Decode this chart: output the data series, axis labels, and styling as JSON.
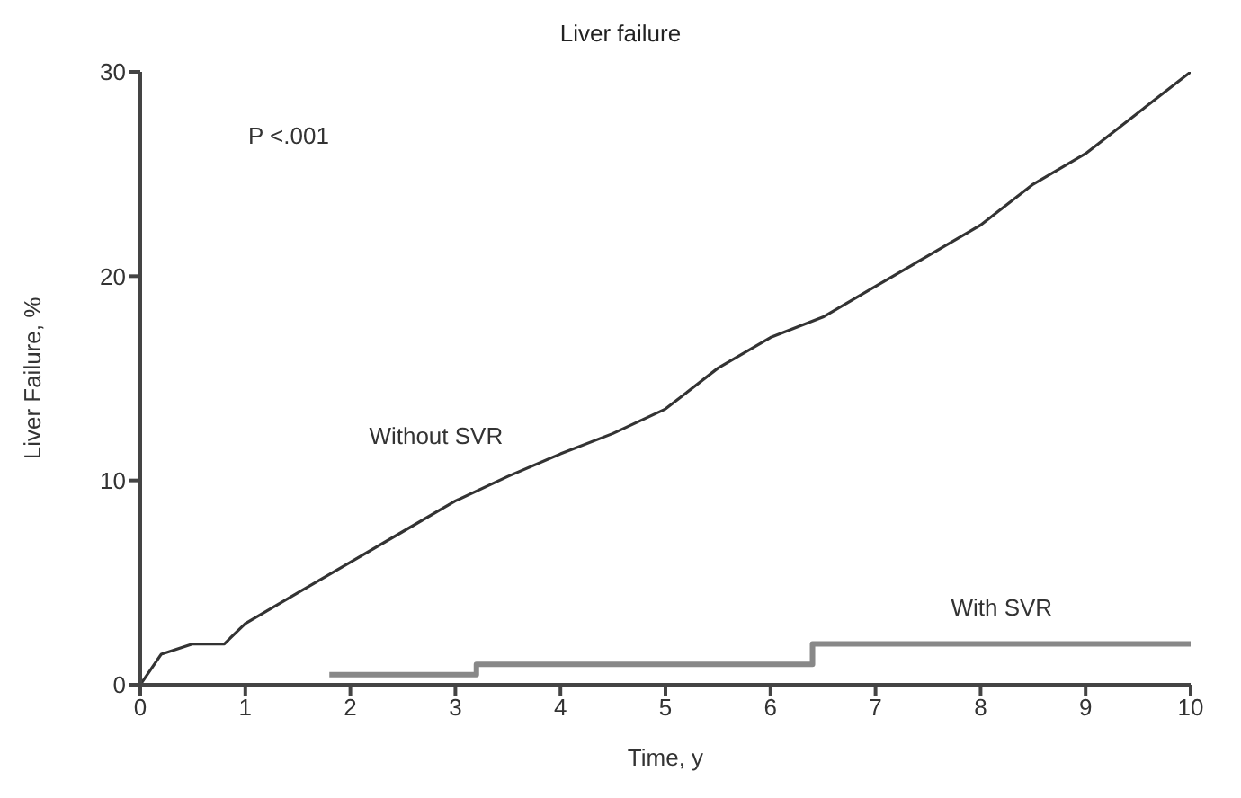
{
  "chart_data": {
    "type": "line",
    "title": "Liver failure",
    "xlabel": "Time, y",
    "ylabel": "Liver Failure, %",
    "xlim": [
      0,
      10
    ],
    "xticks": [
      0,
      1,
      2,
      3,
      4,
      5,
      6,
      7,
      8,
      9,
      10
    ],
    "ylim": [
      0,
      30
    ],
    "yticks": [
      0,
      10,
      20,
      30
    ],
    "grid": false,
    "legend": false,
    "marker": "none",
    "series": [
      {
        "name": "Without SVR",
        "color": "#333333",
        "x": [
          0,
          0.2,
          0.5,
          0.8,
          1,
          1.5,
          2,
          2.5,
          3,
          3.5,
          4,
          4.5,
          5,
          5.5,
          6,
          6.5,
          7,
          7.5,
          8,
          8.5,
          9,
          9.5,
          10
        ],
        "values": [
          0,
          1.5,
          2,
          2,
          3,
          4.5,
          6,
          7.5,
          9,
          10.2,
          11.3,
          12.3,
          13.5,
          15.5,
          17,
          18,
          19.5,
          21,
          22.5,
          24.5,
          26,
          28,
          30
        ]
      },
      {
        "name": "With SVR",
        "type": "step",
        "color": "#888888",
        "x": [
          1.8,
          3.2,
          6.4,
          10
        ],
        "values": [
          0.5,
          1,
          2,
          2
        ]
      }
    ],
    "annotations": [
      "P <.001"
    ]
  }
}
